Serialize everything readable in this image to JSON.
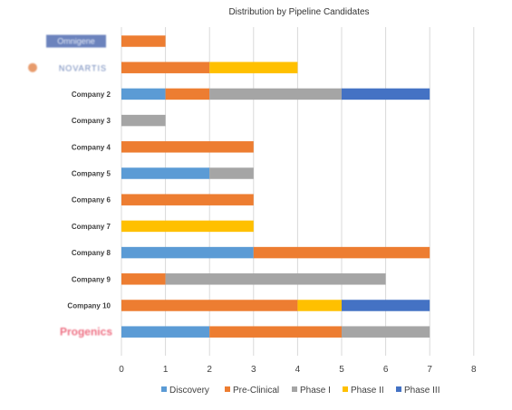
{
  "chart_data": {
    "type": "bar",
    "orientation": "horizontal",
    "stacked": true,
    "title": "Distribution by Pipeline Candidates",
    "categories": [
      "Omnigene",
      "NOVARTIS",
      "Company 2",
      "Company 3",
      "Company 4",
      "Company 5",
      "Company 6",
      "Company 7",
      "Company 8",
      "Company 9",
      "Company 10",
      "Progenics"
    ],
    "category_logos": [
      true,
      true,
      false,
      false,
      false,
      false,
      false,
      false,
      false,
      false,
      false,
      true
    ],
    "series": [
      {
        "name": "Discovery",
        "color": "#5B9BD5",
        "values": [
          0,
          0,
          1,
          0,
          0,
          2,
          0,
          0,
          3,
          0,
          0,
          2
        ]
      },
      {
        "name": "Pre-Clinical",
        "color": "#ED7D31",
        "values": [
          1,
          2,
          1,
          0,
          3,
          0,
          3,
          0,
          4,
          1,
          4,
          3
        ]
      },
      {
        "name": "Phase I",
        "color": "#A5A5A5",
        "values": [
          0,
          0,
          3,
          1,
          0,
          1,
          0,
          0,
          0,
          5,
          0,
          2
        ]
      },
      {
        "name": "Phase II",
        "color": "#FFC000",
        "values": [
          0,
          2,
          0,
          0,
          0,
          0,
          0,
          3,
          0,
          0,
          1,
          0
        ]
      },
      {
        "name": "Phase III",
        "color": "#4472C4",
        "values": [
          0,
          0,
          2,
          0,
          0,
          0,
          0,
          0,
          0,
          0,
          2,
          0
        ]
      }
    ],
    "xlim": [
      0,
      8
    ],
    "xticks": [
      "0",
      "1",
      "2",
      "3",
      "4",
      "5",
      "6",
      "7",
      "8"
    ],
    "grid": true,
    "legend_position": "bottom"
  }
}
